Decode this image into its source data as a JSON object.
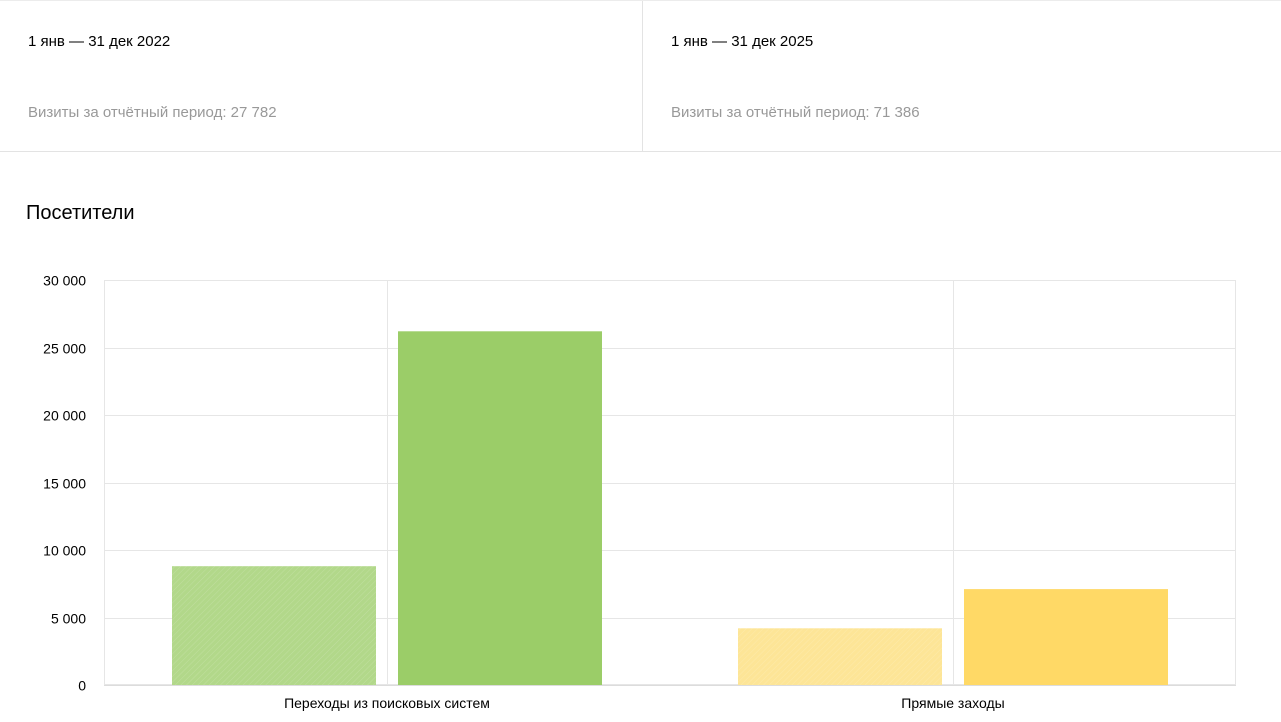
{
  "periods": [
    {
      "range": "1 янв — 31 дек 2022",
      "visits_label": "Визиты за отчётный период: 27 782"
    },
    {
      "range": "1 янв — 31 дек 2025",
      "visits_label": "Визиты за отчётный период: 71 386"
    }
  ],
  "section": {
    "title": "Посетители"
  },
  "colors": {
    "search_2022": "#b2d88a",
    "search_2025": "#9bcd68",
    "direct_2022": "#fde597",
    "direct_2025": "#ffd966",
    "grid": "#e6e6e6"
  },
  "chart_data": {
    "type": "bar",
    "categories": [
      "Переходы из поисковых систем",
      "Прямые заходы"
    ],
    "series": [
      {
        "values": [
          8800,
          4200
        ]
      },
      {
        "values": [
          26200,
          7100
        ]
      }
    ],
    "ylim": [
      0,
      30000
    ],
    "yticks": [
      0,
      5000,
      10000,
      15000,
      20000,
      25000,
      30000
    ],
    "ytick_labels": [
      "0",
      "5 000",
      "10 000",
      "15 000",
      "20 000",
      "25 000",
      "30 000"
    ],
    "grid": true,
    "xlabel": "",
    "ylabel": "",
    "title": ""
  }
}
